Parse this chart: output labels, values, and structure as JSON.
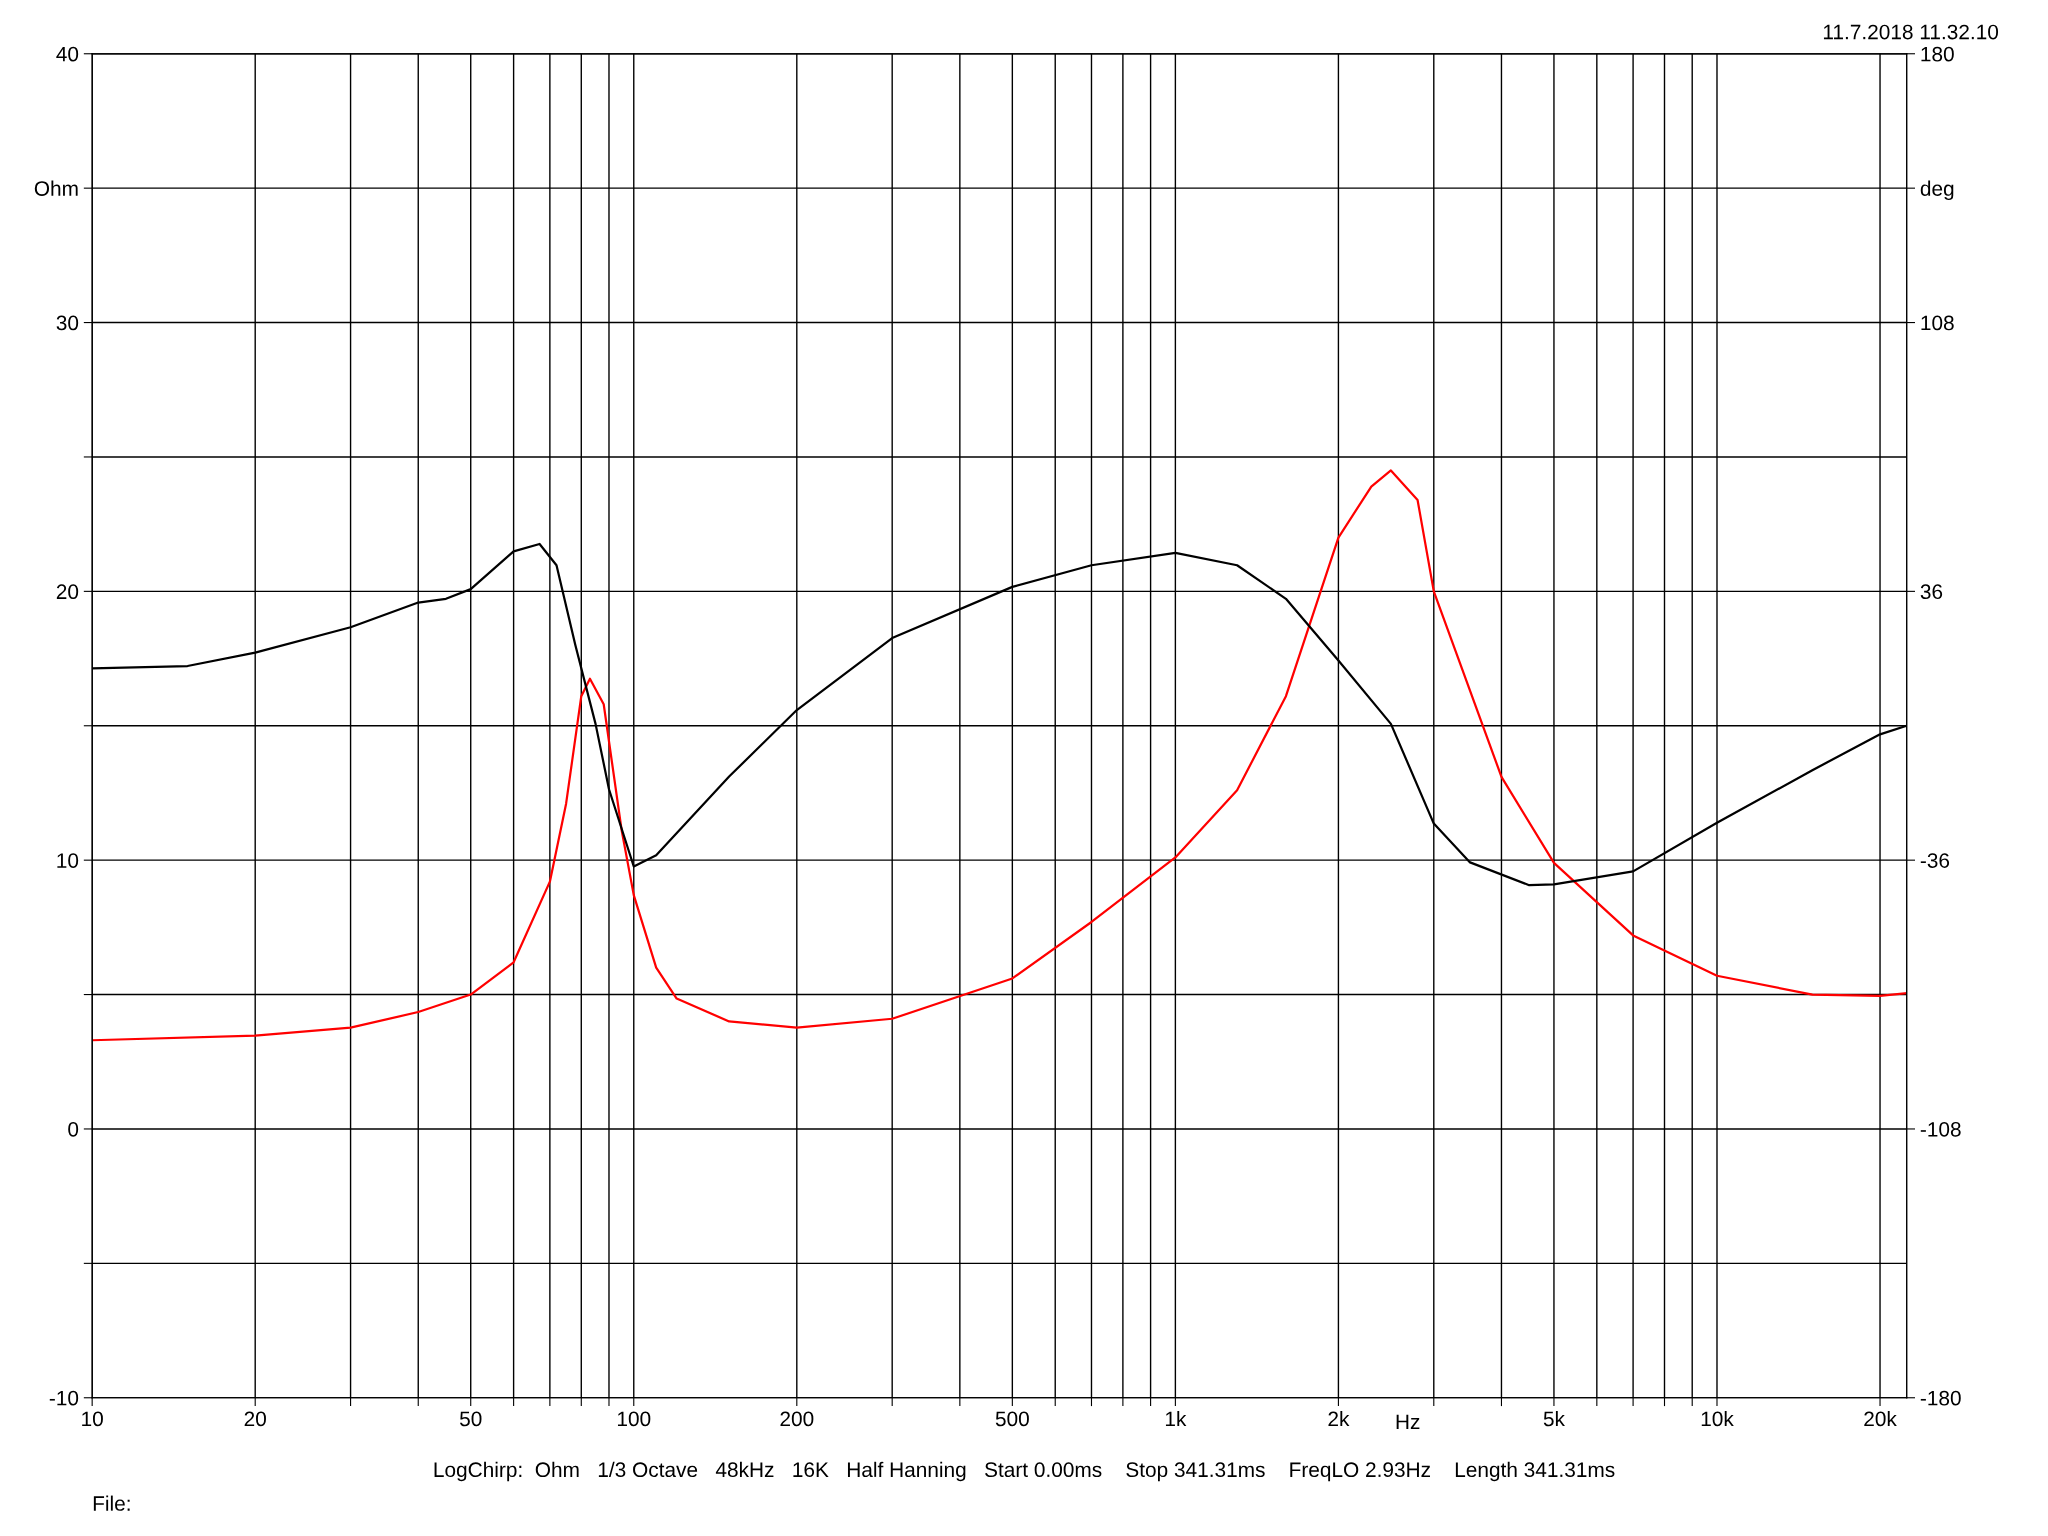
{
  "chart_data": {
    "type": "line",
    "xlabel": "Hz",
    "log": "x",
    "grid": true,
    "marker": "none",
    "line_style": "solid",
    "annotations": [
      "11.7.2018 11.32.10",
      "LogChirp:  Ohm   1/3 Octave   48kHz   16K   Half Hanning   Start 0.00ms    Stop 341.31ms    FreqLO 2.93Hz    Length 341.31ms",
      "File:"
    ],
    "xlim": [
      10,
      22400
    ],
    "xticks": [
      10,
      20,
      {
        "value": 30,
        "label": null
      },
      {
        "value": 40,
        "label": null
      },
      50,
      {
        "value": 60,
        "label": null
      },
      {
        "value": 70,
        "label": null
      },
      {
        "value": 80,
        "label": null
      },
      {
        "value": 90,
        "label": null
      },
      100,
      200,
      {
        "value": 300,
        "label": null
      },
      {
        "value": 400,
        "label": null
      },
      500,
      {
        "value": 600,
        "label": null
      },
      {
        "value": 700,
        "label": null
      },
      {
        "value": 800,
        "label": null
      },
      {
        "value": 900,
        "label": null
      },
      {
        "value": 1000,
        "label": "1k"
      },
      {
        "value": 2000,
        "label": "2k"
      },
      {
        "value": 3000,
        "label": null
      },
      {
        "value": 4000,
        "label": null
      },
      {
        "value": 5000,
        "label": "5k"
      },
      {
        "value": 6000,
        "label": null
      },
      {
        "value": 7000,
        "label": null
      },
      {
        "value": 8000,
        "label": null
      },
      {
        "value": 9000,
        "label": null
      },
      {
        "value": 10000,
        "label": "10k"
      },
      {
        "value": 20000,
        "label": "20k"
      }
    ],
    "ylim": [
      -10,
      40
    ],
    "yticks": [
      -10,
      {
        "value": -5,
        "label": null
      },
      0,
      {
        "value": 5,
        "label": null
      },
      10,
      {
        "value": 15,
        "label": null
      },
      20,
      {
        "value": 25,
        "label": null
      },
      30,
      {
        "value": 35,
        "label": "Ohm"
      },
      40
    ],
    "y2lim": [
      -180,
      180
    ],
    "y2ticks": [
      -180,
      -108,
      -36,
      36,
      108,
      {
        "value": 144,
        "label": "deg"
      },
      180
    ],
    "series": [
      {
        "color": "#ff0000",
        "x": [
          10,
          20,
          30,
          40,
          50,
          60,
          70,
          75,
          80,
          83,
          88,
          95,
          100,
          110,
          120,
          150,
          200,
          300,
          500,
          700,
          1000,
          1300,
          1600,
          2000,
          2300,
          2500,
          2800,
          3000,
          4000,
          5000,
          7000,
          10000,
          15000,
          20000,
          22400
        ],
        "values": [
          3.3,
          3.47,
          3.77,
          4.35,
          5.0,
          6.2,
          9.2,
          12.1,
          16.1,
          16.75,
          15.8,
          11.1,
          8.7,
          6.0,
          4.85,
          4.0,
          3.77,
          4.1,
          5.6,
          7.7,
          10.1,
          12.6,
          16.1,
          22.0,
          23.9,
          24.5,
          23.4,
          20.0,
          13.1,
          9.9,
          7.2,
          5.7,
          5.0,
          4.95,
          5.05
        ]
      },
      {
        "color": "#000000",
        "axis": "y2",
        "x": [
          10,
          15,
          20,
          30,
          40,
          45,
          50,
          60,
          67,
          72,
          78,
          85,
          90,
          100,
          110,
          150,
          200,
          300,
          500,
          700,
          1000,
          1300,
          1600,
          2000,
          2500,
          3000,
          3500,
          4500,
          5000,
          7000,
          10000,
          15000,
          20000,
          22400
        ],
        "values": [
          15.4,
          16,
          19.6,
          26.4,
          33,
          34,
          36.6,
          46.7,
          48.7,
          43,
          21.6,
          0.5,
          -17,
          -37.7,
          -34.7,
          -13.6,
          4.2,
          23.5,
          37.2,
          43,
          46.3,
          43,
          34,
          17.5,
          0.5,
          -26.2,
          -36.6,
          -42.7,
          -42.5,
          -39,
          -26,
          -11.9,
          -2.3,
          0
        ]
      }
    ]
  }
}
